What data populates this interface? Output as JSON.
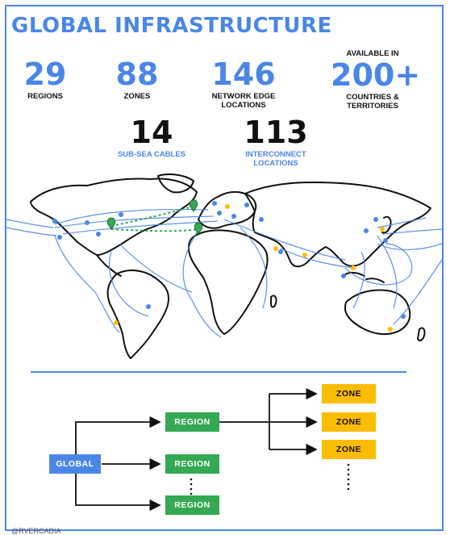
{
  "title": "GLOBAL INFRASTRUCTURE",
  "stats": {
    "regions": {
      "value": "29",
      "label": "REGIONS"
    },
    "zones": {
      "value": "88",
      "label": "ZONES"
    },
    "edge": {
      "value": "146",
      "label": "NETWORK EDGE\nLOCATIONS"
    },
    "countries": {
      "pre": "AVAILABLE IN",
      "value": "200+",
      "label": "COUNTRIES &\nTERRITORIES"
    },
    "cables": {
      "value": "14",
      "label": "SUB-SEA CABLES"
    },
    "interconnect": {
      "value": "113",
      "label": "INTERCONNECT\nLOCATIONS"
    }
  },
  "colors": {
    "blue": "#4a86e8",
    "green": "#34a853",
    "yellow": "#fbbc04"
  },
  "hierarchy": {
    "global": "GLOBAL",
    "regions": [
      "REGION",
      "REGION",
      "REGION"
    ],
    "zones": [
      "ZONE",
      "ZONE",
      "ZONE"
    ]
  },
  "footer": "@RVERCADIA"
}
